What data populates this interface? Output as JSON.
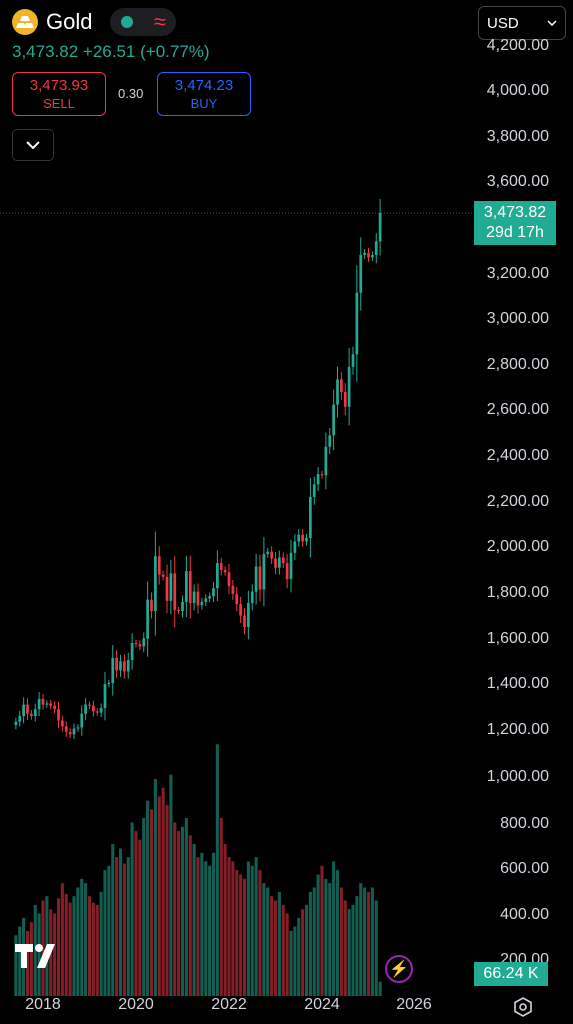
{
  "header": {
    "symbol": "Gold",
    "price": "3,473.82",
    "change": "+26.51 (+0.77%)",
    "sell_price": "3,473.93",
    "sell_label": "SELL",
    "spread": "0.30",
    "buy_price": "3,474.23",
    "buy_label": "BUY",
    "currency": "USD"
  },
  "colors": {
    "up": "#22ab94",
    "down": "#f23645",
    "buy": "#2962ff"
  },
  "chart_data": {
    "type": "candlestick",
    "interval": "monthly",
    "y_ticks": [
      "4,200.00",
      "4,000.00",
      "3,800.00",
      "3,600.00",
      "3,200.00",
      "3,000.00",
      "2,800.00",
      "2,600.00",
      "2,400.00",
      "2,200.00",
      "2,000.00",
      "1,800.00",
      "1,600.00",
      "1,400.00",
      "1,200.00",
      "1,000.00",
      "800.00",
      "600.00",
      "400.00",
      "200.00"
    ],
    "x_ticks": [
      "2018",
      "2020",
      "2022",
      "2024",
      "2026"
    ],
    "last_price_label": "3,473.82",
    "countdown_label": "29d 17h",
    "volume_label": "66.24 K",
    "price_range": [
      1150,
      4250
    ],
    "start": "2017-06",
    "close": [
      1245,
      1270,
      1320,
      1280,
      1270,
      1300,
      1345,
      1320,
      1325,
      1315,
      1300,
      1250,
      1225,
      1200,
      1190,
      1215,
      1220,
      1280,
      1320,
      1315,
      1290,
      1285,
      1305,
      1410,
      1415,
      1525,
      1470,
      1510,
      1465,
      1515,
      1590,
      1585,
      1575,
      1610,
      1780,
      1730,
      1970,
      1890,
      1880,
      1775,
      1895,
      1735,
      1730,
      1770,
      1905,
      1765,
      1815,
      1755,
      1770,
      1785,
      1795,
      1830,
      1940,
      1910,
      1900,
      1840,
      1805,
      1760,
      1710,
      1660,
      1765,
      1815,
      1925,
      1825,
      1980,
      1990,
      1960,
      1920,
      1965,
      1940,
      1870,
      1985,
      2035,
      2065,
      2035,
      2050,
      2230,
      2285,
      2330,
      2325,
      2450,
      2500,
      2635,
      2745,
      2690,
      2625,
      2800,
      2855,
      3125,
      3290,
      3300,
      3280,
      3290,
      3350,
      3474
    ],
    "volume": [
      280,
      320,
      360,
      300,
      340,
      420,
      380,
      440,
      460,
      400,
      380,
      450,
      520,
      470,
      430,
      460,
      500,
      540,
      520,
      460,
      430,
      420,
      480,
      580,
      600,
      700,
      640,
      680,
      610,
      640,
      800,
      760,
      720,
      820,
      900,
      860,
      1000,
      920,
      960,
      880,
      1020,
      800,
      760,
      780,
      820,
      740,
      700,
      640,
      660,
      620,
      600,
      660,
      1160,
      820,
      700,
      640,
      620,
      580,
      560,
      540,
      620,
      600,
      640,
      580,
      520,
      500,
      460,
      440,
      480,
      420,
      380,
      300,
      320,
      360,
      400,
      420,
      480,
      500,
      560,
      600,
      540,
      520,
      620,
      580,
      500,
      440,
      400,
      420,
      460,
      520,
      500,
      480,
      500,
      440,
      66
    ]
  }
}
